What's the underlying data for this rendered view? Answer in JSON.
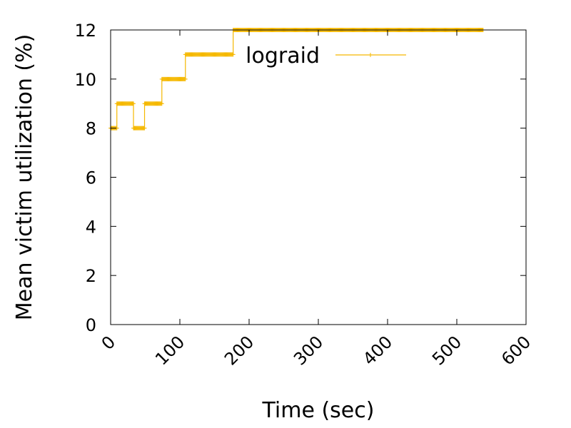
{
  "chart_data": {
    "type": "line",
    "xlabel": "Time (sec)",
    "ylabel": "Mean victim utilization (%)",
    "xlim": [
      0,
      600
    ],
    "ylim": [
      0,
      12
    ],
    "xticks": [
      0,
      100,
      200,
      300,
      400,
      500,
      600
    ],
    "yticks": [
      0,
      2,
      4,
      6,
      8,
      10,
      12
    ],
    "grid": false,
    "legend_position": "top-right",
    "series": [
      {
        "name": "lograid",
        "color": "#f5b800",
        "steps": [
          {
            "x_start": 0,
            "x_end": 9,
            "y": 8
          },
          {
            "x_start": 9,
            "x_end": 33,
            "y": 9
          },
          {
            "x_start": 33,
            "x_end": 49,
            "y": 8
          },
          {
            "x_start": 49,
            "x_end": 74,
            "y": 9
          },
          {
            "x_start": 74,
            "x_end": 108,
            "y": 10
          },
          {
            "x_start": 108,
            "x_end": 177,
            "y": 11
          },
          {
            "x_start": 177,
            "x_end": 538,
            "y": 12
          }
        ]
      }
    ]
  }
}
